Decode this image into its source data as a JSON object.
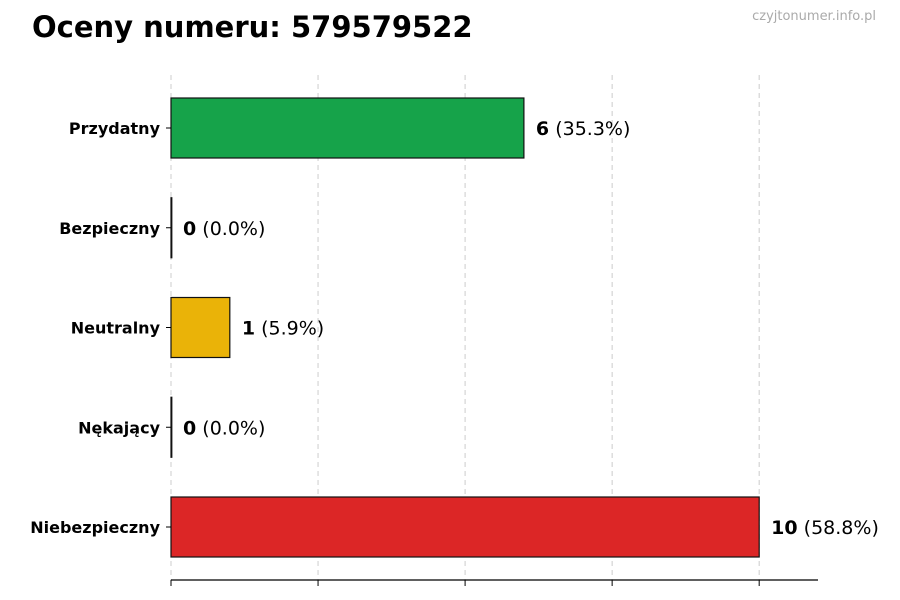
{
  "watermark": "czyjtonumer.info.pl",
  "chart_data": {
    "type": "bar",
    "orientation": "horizontal",
    "title": "Oceny numeru: 579579522",
    "xlabel": "",
    "ylabel": "",
    "categories": [
      "Przydatny",
      "Bezpieczny",
      "Neutralny",
      "Nękający",
      "Niebezpieczny"
    ],
    "values": [
      6,
      0,
      1,
      0,
      10
    ],
    "percent_labels": [
      "(35.3%)",
      "(0.0%)",
      "(5.9%)",
      "(0.0%)",
      "(58.8%)"
    ],
    "colors": [
      "#16a34a",
      "#16a34a",
      "#eab308",
      "#dc2626",
      "#dc2626"
    ],
    "xlim": [
      0,
      11
    ],
    "xticks": [
      0,
      2.5,
      5,
      7.5,
      10
    ],
    "xtick_labels_shown": false,
    "grid": "vertical dashed",
    "legend": "none"
  }
}
